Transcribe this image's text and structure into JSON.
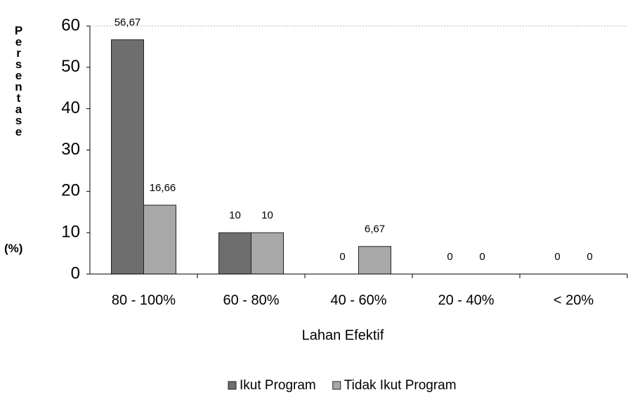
{
  "chart_data": {
    "type": "bar",
    "ylabel": "Persentase",
    "ylabel_unit": "(%)",
    "xlabel": "Lahan Efektif",
    "categories": [
      "80 - 100%",
      "60 - 80%",
      "40 - 60%",
      "20 - 40%",
      "< 20%"
    ],
    "series": [
      {
        "name": "Ikut Program",
        "color": "#6e6e6e",
        "values": [
          56.67,
          10,
          0,
          0,
          0
        ],
        "value_labels": [
          "56,67",
          "10",
          "0",
          "0",
          "0"
        ]
      },
      {
        "name": "Tidak Ikut Program",
        "color": "#a8a8a8",
        "values": [
          16.66,
          10,
          6.67,
          0,
          0
        ],
        "value_labels": [
          "16,66",
          "10",
          "6,67",
          "0",
          "0"
        ]
      }
    ],
    "ylim": [
      0,
      60
    ],
    "yticks": [
      0,
      10,
      20,
      30,
      40,
      50,
      60
    ],
    "legend": "bottom"
  }
}
